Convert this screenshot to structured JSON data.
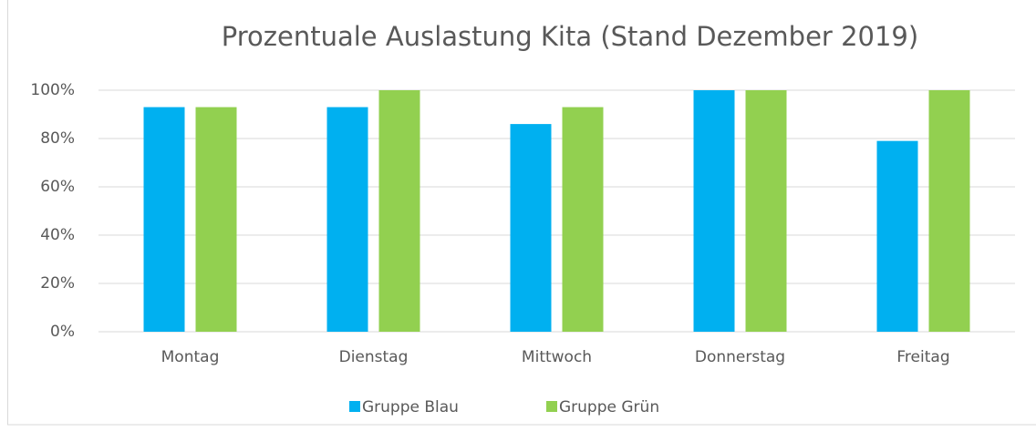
{
  "chart_data": {
    "type": "bar",
    "title": "Prozentuale Auslastung Kita (Stand Dezember 2019)",
    "categories": [
      "Montag",
      "Dienstag",
      "Mittwoch",
      "Donnerstag",
      "Freitag"
    ],
    "series": [
      {
        "name": "Gruppe Blau",
        "color": "#00b0f0",
        "values": [
          93,
          93,
          86,
          100,
          79
        ]
      },
      {
        "name": "Gruppe Grün",
        "color": "#92d050",
        "values": [
          93,
          100,
          93,
          100,
          100
        ]
      }
    ],
    "ylim": [
      0,
      100
    ],
    "yticks": [
      {
        "value": 0,
        "label": "0%"
      },
      {
        "value": 20,
        "label": "20%"
      },
      {
        "value": 40,
        "label": "40%"
      },
      {
        "value": 60,
        "label": "60%"
      },
      {
        "value": 80,
        "label": "80%"
      },
      {
        "value": 100,
        "label": "100%"
      }
    ],
    "grid": true,
    "legend": "bottom"
  }
}
